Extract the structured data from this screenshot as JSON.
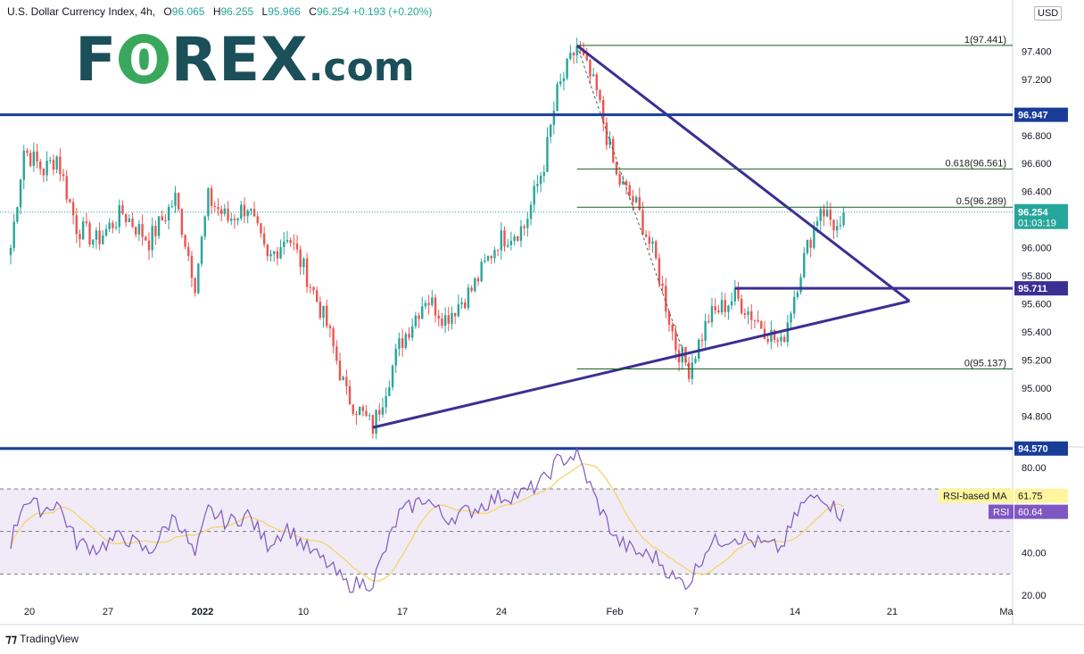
{
  "header": {
    "title": "U.S. Dollar Currency Index, 4h,",
    "open_label": "O",
    "open": "96.065",
    "high_label": "H",
    "high": "96.255",
    "low_label": "L",
    "low": "95.966",
    "close_label": "C",
    "close": "96.254",
    "change": "+0.193 (+0.20%)",
    "currency": "USD"
  },
  "logo": {
    "text_a": "F",
    "text_o": "0",
    "text_b": "REX",
    "text_c": ".com"
  },
  "footer": {
    "brand": "TradingView"
  },
  "colors": {
    "up": "#26a69a",
    "down": "#ef5350",
    "trend": "#3b2f93",
    "level": "#1a3c99",
    "rsi": "#7e57c2",
    "rsi_ma": "#f5d36b"
  },
  "chart_data": [
    {
      "type": "candlestick",
      "title": "U.S. Dollar Currency Index, 4h",
      "ylim": [
        94.6,
        97.65
      ],
      "price_ticks": [
        "97.400",
        "97.200",
        "96.800",
        "96.600",
        "96.400",
        "96.000",
        "95.800",
        "95.600",
        "95.400",
        "95.200",
        "95.000",
        "94.800"
      ],
      "x_tick_labels": [
        "20",
        "27",
        "2022",
        "10",
        "17",
        "24",
        "Feb",
        "7",
        "14",
        "21",
        "Ma"
      ],
      "anchors": [
        {
          "i": 0,
          "p": 96.0
        },
        {
          "i": 4,
          "p": 96.7
        },
        {
          "i": 10,
          "p": 96.55
        },
        {
          "i": 14,
          "p": 96.65
        },
        {
          "i": 20,
          "p": 96.15
        },
        {
          "i": 26,
          "p": 96.05
        },
        {
          "i": 34,
          "p": 96.25
        },
        {
          "i": 42,
          "p": 96.05
        },
        {
          "i": 50,
          "p": 96.35
        },
        {
          "i": 56,
          "p": 95.75
        },
        {
          "i": 60,
          "p": 96.35
        },
        {
          "i": 66,
          "p": 96.2
        },
        {
          "i": 72,
          "p": 96.3
        },
        {
          "i": 78,
          "p": 95.9
        },
        {
          "i": 84,
          "p": 96.1
        },
        {
          "i": 90,
          "p": 95.8
        },
        {
          "i": 96,
          "p": 95.45
        },
        {
          "i": 102,
          "p": 94.95
        },
        {
          "i": 110,
          "p": 94.72
        },
        {
          "i": 118,
          "p": 95.3
        },
        {
          "i": 126,
          "p": 95.65
        },
        {
          "i": 132,
          "p": 95.5
        },
        {
          "i": 140,
          "p": 95.7
        },
        {
          "i": 148,
          "p": 96.05
        },
        {
          "i": 156,
          "p": 96.15
        },
        {
          "i": 162,
          "p": 96.6
        },
        {
          "i": 166,
          "p": 97.1
        },
        {
          "i": 172,
          "p": 97.44
        },
        {
          "i": 178,
          "p": 97.1
        },
        {
          "i": 184,
          "p": 96.5
        },
        {
          "i": 190,
          "p": 96.3
        },
        {
          "i": 196,
          "p": 95.9
        },
        {
          "i": 202,
          "p": 95.3
        },
        {
          "i": 206,
          "p": 95.14
        },
        {
          "i": 212,
          "p": 95.5
        },
        {
          "i": 220,
          "p": 95.65
        },
        {
          "i": 228,
          "p": 95.45
        },
        {
          "i": 234,
          "p": 95.3
        },
        {
          "i": 240,
          "p": 95.85
        },
        {
          "i": 246,
          "p": 96.3
        },
        {
          "i": 252,
          "p": 96.1
        },
        {
          "i": 253,
          "p": 96.25
        }
      ],
      "horizontal_levels": [
        {
          "value": 96.947,
          "label": "96.947"
        },
        {
          "value": 95.711,
          "label": "95.711"
        },
        {
          "value": 94.57,
          "label": "94.570"
        }
      ],
      "fibonacci": [
        {
          "value": 97.441,
          "label": "1(97.441)"
        },
        {
          "value": 96.561,
          "label": "0.618(96.561)"
        },
        {
          "value": 96.289,
          "label": "0.5(96.289)"
        },
        {
          "value": 95.137,
          "label": "0(95.137)"
        }
      ],
      "current_price": {
        "value": "96.254",
        "countdown": "01:03:19"
      }
    },
    {
      "type": "line",
      "title": "RSI",
      "ylim": [
        18,
        88
      ],
      "y_ticks": [
        "80.00",
        "40.00",
        "20.00"
      ],
      "bands": [
        70,
        50,
        30
      ],
      "series": [
        {
          "name": "RSI-based MA",
          "last": "61.75"
        },
        {
          "name": "RSI",
          "last": "60.64"
        }
      ],
      "anchors": [
        {
          "i": 0,
          "v": 45
        },
        {
          "i": 4,
          "v": 65
        },
        {
          "i": 10,
          "v": 60
        },
        {
          "i": 14,
          "v": 64
        },
        {
          "i": 20,
          "v": 45
        },
        {
          "i": 26,
          "v": 42
        },
        {
          "i": 34,
          "v": 48
        },
        {
          "i": 42,
          "v": 40
        },
        {
          "i": 50,
          "v": 58
        },
        {
          "i": 56,
          "v": 38
        },
        {
          "i": 60,
          "v": 60
        },
        {
          "i": 66,
          "v": 54
        },
        {
          "i": 72,
          "v": 58
        },
        {
          "i": 78,
          "v": 44
        },
        {
          "i": 84,
          "v": 52
        },
        {
          "i": 90,
          "v": 42
        },
        {
          "i": 96,
          "v": 35
        },
        {
          "i": 102,
          "v": 25
        },
        {
          "i": 110,
          "v": 26
        },
        {
          "i": 118,
          "v": 58
        },
        {
          "i": 126,
          "v": 66
        },
        {
          "i": 132,
          "v": 56
        },
        {
          "i": 140,
          "v": 60
        },
        {
          "i": 148,
          "v": 66
        },
        {
          "i": 156,
          "v": 68
        },
        {
          "i": 162,
          "v": 74
        },
        {
          "i": 166,
          "v": 83
        },
        {
          "i": 172,
          "v": 86
        },
        {
          "i": 178,
          "v": 64
        },
        {
          "i": 184,
          "v": 46
        },
        {
          "i": 190,
          "v": 40
        },
        {
          "i": 196,
          "v": 38
        },
        {
          "i": 202,
          "v": 27
        },
        {
          "i": 206,
          "v": 26
        },
        {
          "i": 212,
          "v": 44
        },
        {
          "i": 220,
          "v": 48
        },
        {
          "i": 228,
          "v": 44
        },
        {
          "i": 234,
          "v": 42
        },
        {
          "i": 240,
          "v": 62
        },
        {
          "i": 246,
          "v": 68
        },
        {
          "i": 252,
          "v": 58
        },
        {
          "i": 253,
          "v": 61
        }
      ]
    }
  ]
}
